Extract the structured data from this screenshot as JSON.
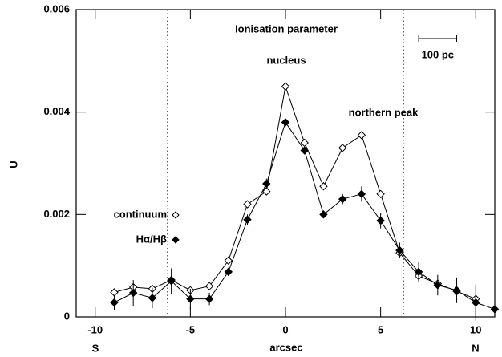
{
  "chart_data": {
    "type": "line",
    "title": "Ionisation parameter",
    "x_label": "arcsec",
    "y_label": "U",
    "x_end_labels": [
      "S",
      "N"
    ],
    "annotations": [
      "nucleus",
      "northern peak"
    ],
    "scale_bar": {
      "from": 7,
      "to": 9,
      "label": "100 pc"
    },
    "vlines": [
      -6.2,
      6.2
    ],
    "x": [
      -9,
      -8,
      -7,
      -6,
      -5,
      -4,
      -3,
      -2,
      -1,
      0,
      1,
      2,
      3,
      4,
      5,
      6,
      7,
      8,
      9,
      10,
      11
    ],
    "series": [
      {
        "name": "continuum",
        "color": "#000000",
        "marker_fill": "#ffffff",
        "values": [
          0.00048,
          0.00058,
          0.00055,
          0.00072,
          0.00052,
          0.0006,
          0.0011,
          0.0022,
          0.00245,
          0.0045,
          0.0034,
          0.00255,
          0.0033,
          0.00355,
          0.0024,
          0.00125,
          0.0008,
          0.00065,
          0.0005,
          0.00035,
          null
        ]
      },
      {
        "name": "Hα/Hβ",
        "color": "#000000",
        "marker_fill": "#000000",
        "values": [
          0.00028,
          0.00047,
          0.00037,
          0.0007,
          0.00035,
          0.00035,
          0.00088,
          0.0019,
          0.0026,
          0.0038,
          0.00325,
          0.002,
          0.0023,
          0.0024,
          0.00188,
          0.0013,
          0.00088,
          0.00062,
          0.00052,
          0.00028,
          0.00015
        ],
        "errors": [
          0.00015,
          0.00025,
          0.0002,
          0.00025,
          0.0002,
          0.00012,
          8e-05,
          0.0001,
          0.0001,
          5e-05,
          5e-05,
          5e-05,
          0.0001,
          0.00015,
          0.00015,
          0.00015,
          0.0002,
          0.0002,
          0.00025,
          0.00035,
          0.0001
        ]
      }
    ],
    "xlim": [
      -11,
      11
    ],
    "ylim": [
      0,
      0.006
    ],
    "xticks": [
      -10,
      -5,
      0,
      5,
      10
    ],
    "yticks": [
      0,
      0.002,
      0.004,
      0.006
    ]
  }
}
